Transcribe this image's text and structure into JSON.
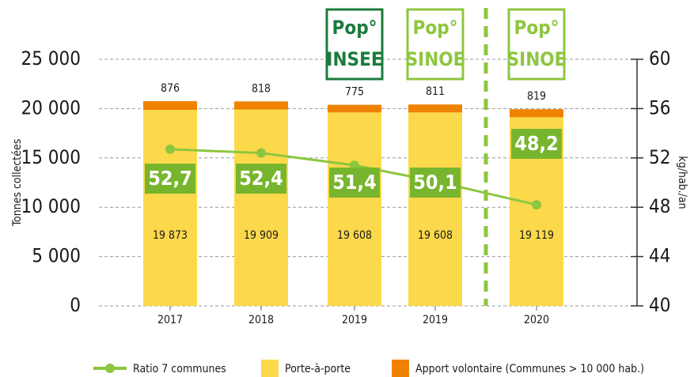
{
  "chart_data": {
    "type": "bar",
    "stacked": true,
    "y_label": "Tonnes collectées",
    "y2_label": "kg/hab./an",
    "categories": [
      "2017",
      "2018",
      "2019",
      "2019",
      "2020"
    ],
    "series": [
      {
        "name": "Porte-à-porte",
        "color": "#fbd94b",
        "values": [
          19873,
          19909,
          19608,
          19608,
          19119
        ],
        "value_labels": [
          "19 873",
          "19 909",
          "19 608",
          "19 608",
          "19 119"
        ]
      },
      {
        "name": "Apport volontaire (Communes > 10 000 hab.)",
        "color": "#ef8200",
        "values": [
          876,
          818,
          775,
          811,
          819
        ]
      },
      {
        "name": "Ratio 7 communes",
        "type": "line",
        "axis": "y2",
        "color": "#8dc63f",
        "values": [
          52.7,
          52.4,
          51.4,
          50.1,
          48.2
        ],
        "value_labels": [
          "52,7",
          "52,4",
          "51,4",
          "50,1",
          "48,2"
        ]
      }
    ],
    "ylim": [
      0,
      25000
    ],
    "yticks": [
      0,
      {
        "value": 5000,
        "label": "5 000"
      },
      {
        "value": 10000,
        "label": "10 000"
      },
      {
        "value": 15000,
        "label": "15 000"
      },
      {
        "value": 20000,
        "label": "20 000"
      },
      {
        "value": 25000,
        "label": "25 000"
      }
    ],
    "y2lim": [
      40,
      60
    ],
    "y2ticks": [
      40,
      44,
      48,
      52,
      56,
      60
    ],
    "grid": true,
    "annotations": [
      {
        "lines": [
          "Pop°",
          "INSEE"
        ],
        "color": "#1b7b3c"
      },
      {
        "lines": [
          "Pop°",
          "SINOE"
        ],
        "color": "#8dc63f"
      },
      {
        "lines": [
          "Pop°",
          "SINOE"
        ],
        "color": "#8dc63f"
      }
    ]
  }
}
